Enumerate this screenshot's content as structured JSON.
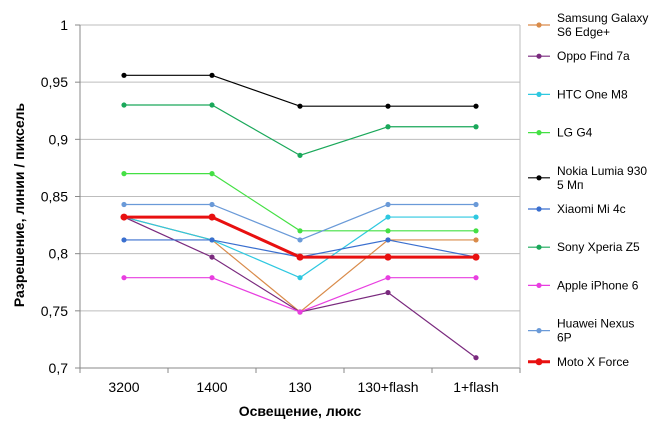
{
  "chart_data": {
    "type": "line",
    "title": "",
    "xlabel": "Освещение,  люкс",
    "ylabel": "Разрешение,  линии / пиксель",
    "categories": [
      "3200",
      "1400",
      "130",
      "130+flash",
      "1+flash"
    ],
    "ylim": [
      0.7,
      1.0
    ],
    "yticks": [
      "0,7",
      "0,75",
      "0,8",
      "0,85",
      "0,9",
      "0,95",
      "1"
    ],
    "grid": "horizontal",
    "legend_position": "right",
    "series": [
      {
        "name": "Samsung Galaxy S6 Edge+",
        "legend_lines": [
          "Samsung Galaxy",
          "S6 Edge+"
        ],
        "color": "#d98b4a",
        "values": [
          0.832,
          0.812,
          0.749,
          0.812,
          0.812
        ]
      },
      {
        "name": "Oppo Find 7a",
        "legend_lines": [
          "Oppo Find 7a"
        ],
        "color": "#7a2a7e",
        "values": [
          0.832,
          0.797,
          0.749,
          0.766,
          0.709
        ]
      },
      {
        "name": "HTC One M8",
        "legend_lines": [
          "HTC One M8"
        ],
        "color": "#2ec8e0",
        "values": [
          0.832,
          0.812,
          0.779,
          0.832,
          0.832
        ]
      },
      {
        "name": "LG G4",
        "legend_lines": [
          "LG G4"
        ],
        "color": "#44e044",
        "values": [
          0.87,
          0.87,
          0.82,
          0.82,
          0.82
        ]
      },
      {
        "name": "Nokia Lumia 930 5 Мп",
        "legend_lines": [
          "Nokia Lumia 930",
          "5 Мп"
        ],
        "color": "#000000",
        "values": [
          0.956,
          0.956,
          0.929,
          0.929,
          0.929
        ]
      },
      {
        "name": "Xiaomi Mi 4c",
        "legend_lines": [
          "Xiaomi Mi 4c"
        ],
        "color": "#3a6fcf",
        "values": [
          0.812,
          0.812,
          0.797,
          0.812,
          0.797
        ]
      },
      {
        "name": "Sony Xperia Z5",
        "legend_lines": [
          "Sony Xperia Z5"
        ],
        "color": "#1aa85a",
        "values": [
          0.93,
          0.93,
          0.886,
          0.911,
          0.911
        ]
      },
      {
        "name": "Apple iPhone 6",
        "legend_lines": [
          "Apple iPhone 6"
        ],
        "color": "#e83ee0",
        "values": [
          0.779,
          0.779,
          0.749,
          0.779,
          0.779
        ]
      },
      {
        "name": "Huawei Nexus 6P",
        "legend_lines": [
          "Huawei Nexus",
          "6P"
        ],
        "color": "#6a9ad8",
        "values": [
          0.843,
          0.843,
          0.812,
          0.843,
          0.843
        ]
      },
      {
        "name": "Moto X Force",
        "legend_lines": [
          "Moto X Force"
        ],
        "color": "#e81010",
        "values": [
          0.832,
          0.832,
          0.797,
          0.797,
          0.797
        ],
        "bold": true
      }
    ]
  }
}
